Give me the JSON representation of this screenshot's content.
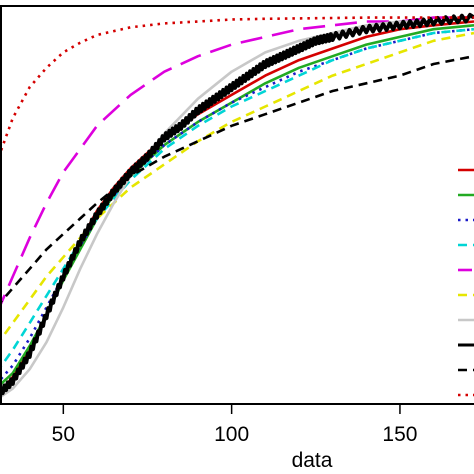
{
  "chart_data": {
    "type": "line",
    "xlabel": "data",
    "ylabel": "",
    "title": "",
    "xlim": [
      30,
      172
    ],
    "ylim": [
      0.0,
      1.03
    ],
    "x_ticks": [
      "50",
      "100",
      "150"
    ],
    "x_tick_values": [
      50,
      100,
      150
    ],
    "grid": false,
    "legend": "right",
    "series": [
      {
        "style": "solid",
        "color": "#d40000",
        "x": [
          30,
          35,
          40,
          45,
          50,
          55,
          60,
          65,
          70,
          80,
          90,
          100,
          110,
          120,
          130,
          140,
          150,
          160,
          172
        ],
        "y": [
          0.02,
          0.07,
          0.14,
          0.23,
          0.33,
          0.42,
          0.5,
          0.56,
          0.61,
          0.69,
          0.75,
          0.8,
          0.85,
          0.89,
          0.92,
          0.95,
          0.97,
          0.98,
          0.99
        ]
      },
      {
        "style": "solid",
        "color": "#22aa22",
        "x": [
          30,
          35,
          40,
          45,
          50,
          55,
          60,
          65,
          70,
          80,
          90,
          100,
          110,
          120,
          130,
          140,
          150,
          160,
          172
        ],
        "y": [
          0.04,
          0.08,
          0.15,
          0.23,
          0.32,
          0.4,
          0.48,
          0.54,
          0.59,
          0.67,
          0.73,
          0.78,
          0.83,
          0.87,
          0.9,
          0.93,
          0.95,
          0.97,
          0.98
        ]
      },
      {
        "style": "dotted",
        "color": "#1a1ac8",
        "x": [
          30,
          35,
          40,
          45,
          50,
          55,
          60,
          65,
          70,
          80,
          90,
          100,
          110,
          120,
          130,
          140,
          150,
          160,
          172
        ],
        "y": [
          0.05,
          0.1,
          0.17,
          0.25,
          0.33,
          0.41,
          0.48,
          0.54,
          0.59,
          0.67,
          0.73,
          0.78,
          0.82,
          0.86,
          0.89,
          0.92,
          0.94,
          0.96,
          0.97
        ]
      },
      {
        "style": "dashed",
        "color": "#00d5d5",
        "x": [
          30,
          35,
          40,
          45,
          50,
          55,
          60,
          65,
          70,
          80,
          90,
          100,
          110,
          120,
          130,
          140,
          150,
          160,
          172
        ],
        "y": [
          0.08,
          0.14,
          0.21,
          0.28,
          0.35,
          0.42,
          0.48,
          0.53,
          0.58,
          0.66,
          0.72,
          0.77,
          0.81,
          0.85,
          0.89,
          0.92,
          0.94,
          0.96,
          0.97
        ]
      },
      {
        "style": "longdash",
        "color": "#dd00dd",
        "x": [
          30,
          35,
          40,
          45,
          50,
          55,
          60,
          70,
          80,
          90,
          100,
          110,
          120,
          130,
          140,
          150,
          160,
          172
        ],
        "y": [
          0.23,
          0.33,
          0.43,
          0.52,
          0.6,
          0.66,
          0.72,
          0.8,
          0.86,
          0.9,
          0.93,
          0.95,
          0.97,
          0.98,
          0.99,
          0.99,
          1.0,
          1.0
        ]
      },
      {
        "style": "dashed",
        "color": "#e6e600",
        "x": [
          30,
          35,
          40,
          45,
          50,
          55,
          60,
          70,
          80,
          90,
          100,
          110,
          120,
          130,
          140,
          150,
          160,
          172
        ],
        "y": [
          0.15,
          0.21,
          0.27,
          0.33,
          0.38,
          0.43,
          0.48,
          0.56,
          0.62,
          0.68,
          0.73,
          0.77,
          0.81,
          0.85,
          0.88,
          0.91,
          0.94,
          0.96
        ]
      },
      {
        "style": "solid",
        "color": "#c8c8c8",
        "x": [
          30,
          35,
          40,
          45,
          50,
          55,
          60,
          65,
          70,
          80,
          90,
          100,
          110,
          120,
          130,
          140,
          150,
          160,
          172
        ],
        "y": [
          0.01,
          0.04,
          0.09,
          0.16,
          0.25,
          0.35,
          0.44,
          0.52,
          0.59,
          0.7,
          0.79,
          0.86,
          0.91,
          0.94,
          0.96,
          0.98,
          0.99,
          0.99,
          1.0
        ]
      },
      {
        "style": "step",
        "color": "#000000",
        "x": [
          30,
          35,
          40,
          45,
          50,
          55,
          60,
          65,
          70,
          75,
          80,
          85,
          90,
          95,
          100,
          105,
          110,
          115,
          120,
          125,
          130,
          140,
          150,
          160,
          172
        ],
        "y": [
          0.02,
          0.06,
          0.13,
          0.23,
          0.33,
          0.42,
          0.49,
          0.55,
          0.6,
          0.64,
          0.69,
          0.72,
          0.76,
          0.79,
          0.82,
          0.85,
          0.88,
          0.9,
          0.92,
          0.94,
          0.95,
          0.97,
          0.98,
          0.99,
          1.0
        ]
      },
      {
        "style": "dashed",
        "color": "#000000",
        "x": [
          30,
          35,
          40,
          45,
          50,
          55,
          60,
          70,
          80,
          90,
          100,
          110,
          120,
          130,
          140,
          150,
          160,
          172
        ],
        "y": [
          0.25,
          0.3,
          0.35,
          0.4,
          0.44,
          0.48,
          0.52,
          0.59,
          0.64,
          0.68,
          0.72,
          0.75,
          0.78,
          0.81,
          0.83,
          0.85,
          0.88,
          0.9
        ]
      },
      {
        "style": "dotted",
        "color": "#d40000",
        "x": [
          30,
          35,
          40,
          45,
          50,
          55,
          60,
          65,
          70,
          80,
          90,
          100,
          110,
          120,
          130,
          140,
          150,
          160,
          172
        ],
        "y": [
          0.62,
          0.74,
          0.82,
          0.87,
          0.91,
          0.935,
          0.955,
          0.965,
          0.975,
          0.985,
          0.99,
          0.995,
          0.997,
          0.998,
          0.999,
          1.0,
          1.0,
          1.0,
          1.0
        ]
      }
    ]
  }
}
